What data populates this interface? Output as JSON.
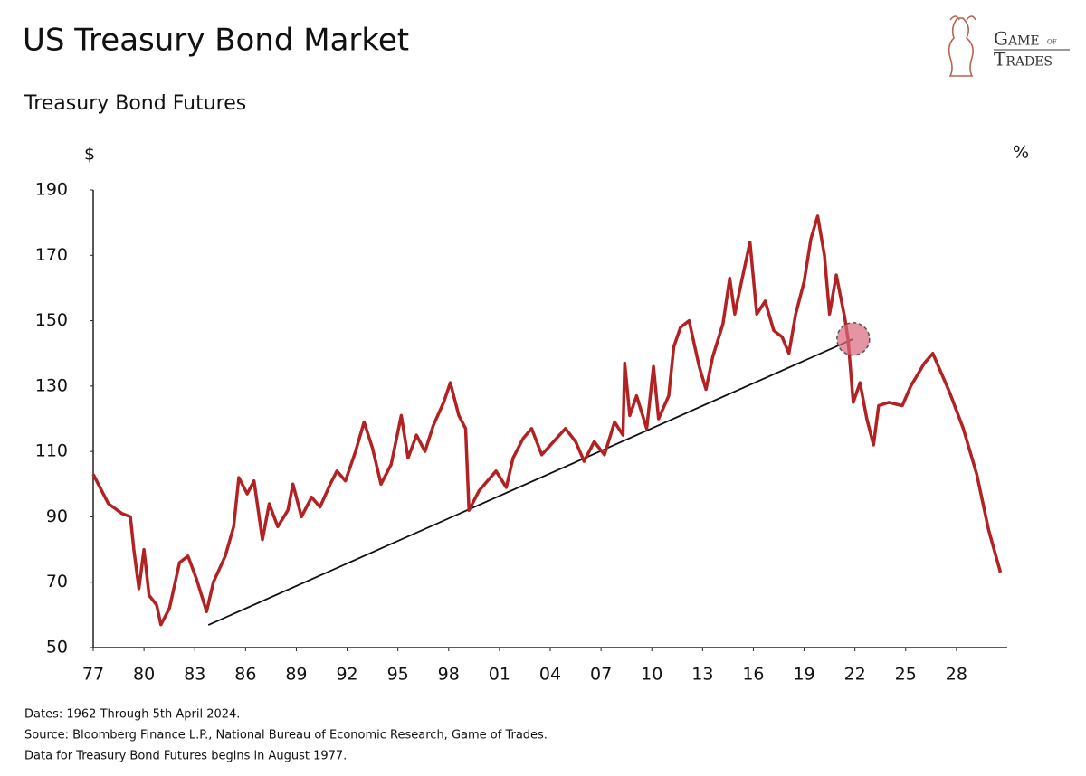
{
  "chart_data": {
    "type": "line",
    "title": "US Treasury Bond Market",
    "subtitle": "Treasury Bond Futures",
    "y_unit": "$",
    "y2_unit": "%",
    "logo": {
      "line1": "Game",
      "of": "of",
      "line2": "Trades"
    },
    "footnotes": [
      "Dates: 1962 Through 5th April 2024.",
      "Source: Bloomberg Finance L.P., National Bureau of Economic Research, Game of Trades.",
      "Data for Treasury Bond Futures begins in August 1977."
    ],
    "xlim": [
      1977,
      2031
    ],
    "ylim": [
      50,
      190
    ],
    "yticks": [
      50,
      70,
      90,
      110,
      130,
      150,
      170,
      190
    ],
    "xticks": [
      {
        "value": 1977,
        "label": "77"
      },
      {
        "value": 1980,
        "label": "80"
      },
      {
        "value": 1983,
        "label": "83"
      },
      {
        "value": 1986,
        "label": "86"
      },
      {
        "value": 1989,
        "label": "89"
      },
      {
        "value": 1992,
        "label": "92"
      },
      {
        "value": 1995,
        "label": "95"
      },
      {
        "value": 1998,
        "label": "98"
      },
      {
        "value": 2001,
        "label": "01"
      },
      {
        "value": 2004,
        "label": "04"
      },
      {
        "value": 2007,
        "label": "07"
      },
      {
        "value": 2010,
        "label": "10"
      },
      {
        "value": 2013,
        "label": "13"
      },
      {
        "value": 2016,
        "label": "16"
      },
      {
        "value": 2019,
        "label": "19"
      },
      {
        "value": 2022,
        "label": "22"
      },
      {
        "value": 2025,
        "label": "25"
      },
      {
        "value": 2028,
        "label": "28"
      }
    ],
    "x": [
      1977,
      1977.9,
      1978.7,
      1979.2,
      1979.4,
      1979.7,
      1980.0,
      1980.3,
      1980.75,
      1981.0,
      1981.5,
      1982.1,
      1982.6,
      1983.1,
      1983.7,
      1984.1,
      1984.8,
      1985.3,
      1985.6,
      1986.1,
      1986.5,
      1987.0,
      1987.4,
      1987.9,
      1988.5,
      1988.8,
      1989.3,
      1989.9,
      1990.4,
      1991.0,
      1991.4,
      1991.9,
      1992.5,
      1993.0,
      1993.5,
      1994.0,
      1994.6,
      1995.2,
      1995.6,
      1996.1,
      1996.6,
      1997.1,
      1997.7,
      1998.1,
      1998.6,
      1999.0,
      1999.2,
      1999.8,
      2000.8,
      2001.4,
      2001.8,
      2002.4,
      2002.9,
      2003.5,
      2004.2,
      2004.9,
      2005.5,
      2006.0,
      2006.6,
      2007.2,
      2007.8,
      2008.3,
      2008.4,
      2008.7,
      2009.1,
      2009.7,
      2010.1,
      2010.4,
      2011.0,
      2011.3,
      2011.7,
      2012.2,
      2012.8,
      2013.2,
      2013.6,
      2014.2,
      2014.6,
      2014.9,
      2015.3,
      2015.8,
      2016.2,
      2016.7,
      2017.2,
      2017.7,
      2018.1,
      2018.5,
      2019.0,
      2019.4,
      2019.8,
      2020.2,
      2020.5,
      2020.9,
      2021.4,
      2021.6,
      2021.9,
      2022.3,
      2022.7,
      2023.1,
      2023.4,
      2024.0,
      2024.8,
      2025.3,
      2026.1,
      2026.6,
      2027.1,
      2027.6,
      2028.4,
      2029.2,
      2029.9,
      2030.6
    ],
    "series": [
      {
        "name": "Treasury Bond Futures",
        "color": "#b22222",
        "values": [
          103,
          94,
          91,
          90,
          80,
          68,
          80,
          66,
          63,
          57,
          62,
          76,
          78,
          71,
          61,
          70,
          78,
          87,
          102,
          97,
          101,
          83,
          94,
          87,
          92,
          100,
          90,
          96,
          93,
          100,
          104,
          101,
          110,
          119,
          111,
          100,
          106,
          121,
          108,
          115,
          110,
          118,
          125,
          131,
          121,
          117,
          92,
          98,
          104,
          99,
          108,
          114,
          117,
          109,
          113,
          117,
          113,
          107,
          113,
          109,
          119,
          115,
          137,
          121,
          127,
          117,
          136,
          120,
          127,
          142,
          148,
          150,
          136,
          129,
          139,
          149,
          163,
          152,
          162,
          174,
          152,
          156,
          147,
          145,
          140,
          152,
          162,
          175,
          182,
          170,
          152,
          164,
          151,
          144,
          125,
          131,
          120,
          112,
          124,
          125,
          124,
          130,
          137,
          140,
          134,
          128,
          117,
          103,
          86,
          73
        ]
      }
    ],
    "trendline": {
      "x": [
        1983.8,
        2021.9
      ],
      "y": [
        56.9,
        144.4
      ],
      "color": "#111111"
    },
    "highlight": {
      "x": 2021.9,
      "y": 144.4,
      "color": "#d9667a"
    }
  }
}
